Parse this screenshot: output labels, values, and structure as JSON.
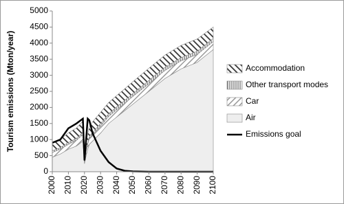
{
  "chart_data": {
    "type": "stacked-area",
    "y_label": "Tourism emissions (Mton/year)",
    "x": [
      2000,
      2005,
      2010,
      2015,
      2019,
      2020,
      2021,
      2022,
      2023,
      2024,
      2025,
      2030,
      2035,
      2040,
      2045,
      2050,
      2060,
      2070,
      2080,
      2090,
      2100
    ],
    "series": [
      {
        "name": "Air",
        "color": "#eeeeee",
        "hatch": "none",
        "kind": "area",
        "values": [
          450,
          550,
          700,
          800,
          950,
          250,
          500,
          700,
          850,
          900,
          950,
          1200,
          1500,
          1700,
          1900,
          2100,
          2500,
          2900,
          3200,
          3400,
          3800
        ]
      },
      {
        "name": "Car",
        "color": "#999999",
        "hatch": "diagonal",
        "kind": "area",
        "values": [
          150,
          150,
          150,
          180,
          200,
          60,
          120,
          160,
          180,
          200,
          200,
          220,
          220,
          230,
          230,
          240,
          240,
          250,
          250,
          250,
          250
        ]
      },
      {
        "name": "Other transport modes",
        "color": "#444444",
        "hatch": "vertical",
        "kind": "area",
        "values": [
          50,
          50,
          60,
          60,
          70,
          20,
          40,
          50,
          60,
          60,
          70,
          80,
          80,
          90,
          90,
          90,
          100,
          100,
          100,
          100,
          100
        ]
      },
      {
        "name": "Accommodation",
        "color": "#333333",
        "hatch": "back-diagonal",
        "kind": "area",
        "values": [
          250,
          260,
          300,
          320,
          350,
          100,
          200,
          260,
          300,
          320,
          330,
          350,
          350,
          350,
          360,
          370,
          380,
          380,
          380,
          380,
          350
        ]
      },
      {
        "name": "Emissions goal",
        "color": "#000000",
        "hatch": "none",
        "kind": "line",
        "values": [
          900,
          1000,
          1350,
          1500,
          1650,
          350,
          1000,
          1650,
          1600,
          1400,
          1200,
          650,
          300,
          100,
          30,
          10,
          0,
          0,
          0,
          0,
          0
        ]
      }
    ],
    "xlim": [
      2000,
      2100
    ],
    "xticks": [
      2000,
      2010,
      2020,
      2030,
      2040,
      2050,
      2060,
      2070,
      2080,
      2090,
      2100
    ],
    "ylim": [
      0,
      5000
    ],
    "yticks": [
      0,
      500,
      1000,
      1500,
      2000,
      2500,
      3000,
      3500,
      4000,
      4500,
      5000
    ],
    "grid": false,
    "legend": "right"
  }
}
